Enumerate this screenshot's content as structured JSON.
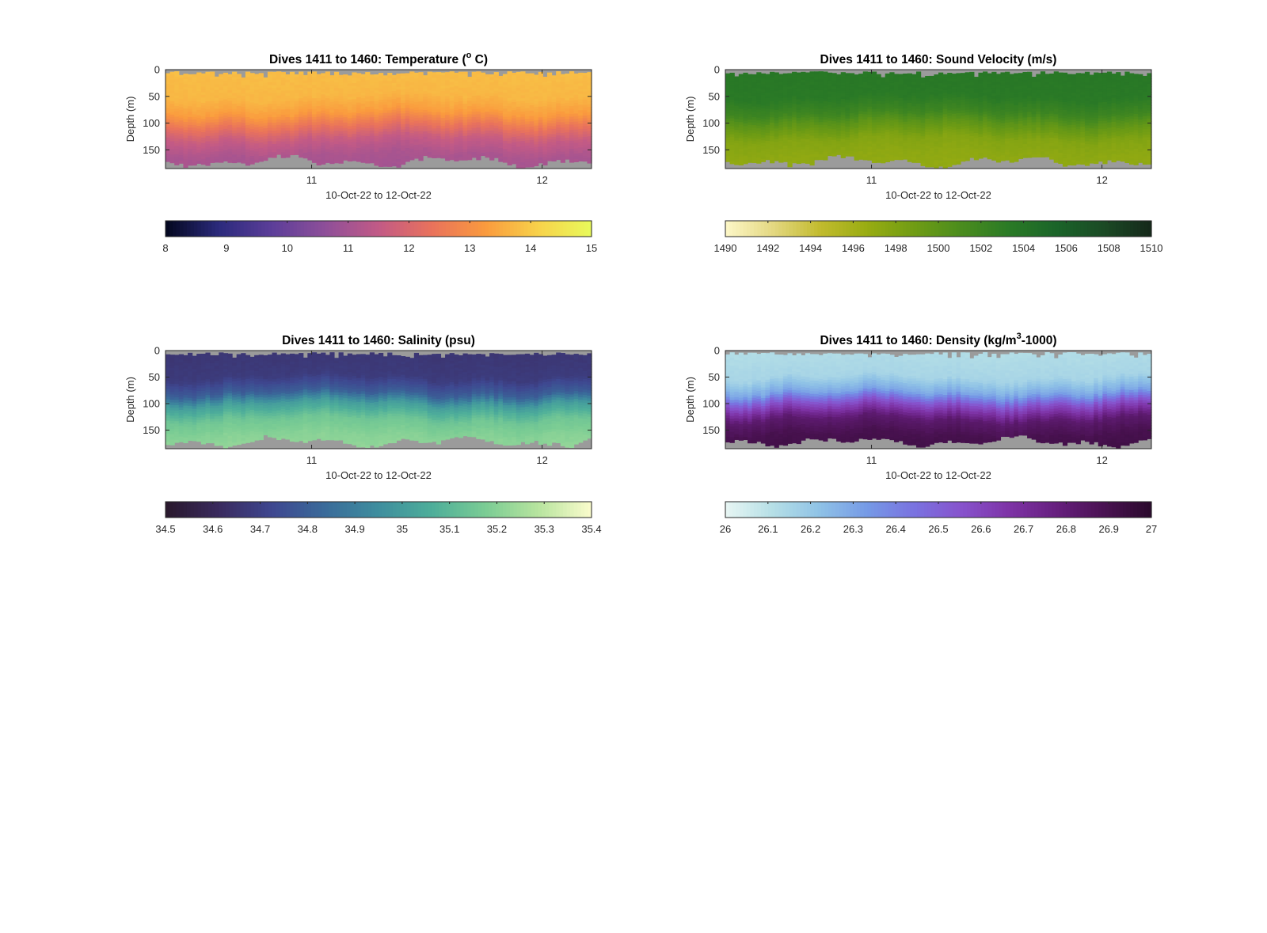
{
  "figure": {
    "panels": [
      {
        "id": "temperature",
        "title": "Dives 1411 to 1460: Temperature (",
        "title_sup": "o",
        "title_end": " C)",
        "colormap": [
          "#03071e",
          "#2b2a7c",
          "#5c3e99",
          "#8e4f99",
          "#c25a86",
          "#e9725c",
          "#fa9a3e",
          "#f7d24a",
          "#e8fa5b"
        ],
        "colorbar_ticks": [
          "8",
          "9",
          "10",
          "11",
          "12",
          "13",
          "14",
          "15"
        ]
      },
      {
        "id": "sound-velocity",
        "title": "Dives 1411 to 1460: Sound Velocity (m/s)",
        "title_sup": "",
        "title_end": "",
        "colormap": [
          "#fdf7c8",
          "#e4d882",
          "#c2bb2e",
          "#98ac12",
          "#6f9c14",
          "#4a8c1e",
          "#2a7a26",
          "#1b6429",
          "#1b4a25",
          "#15281a"
        ],
        "colorbar_ticks": [
          "1490",
          "1492",
          "1494",
          "1496",
          "1498",
          "1500",
          "1502",
          "1504",
          "1506",
          "1508",
          "1510"
        ]
      },
      {
        "id": "salinity",
        "title": "Dives 1411 to 1460: Salinity (psu)",
        "title_sup": "",
        "title_end": "",
        "colormap": [
          "#29182c",
          "#3a2a5e",
          "#3e4790",
          "#3a6b9a",
          "#3e8e9e",
          "#4eae9a",
          "#7acc94",
          "#b7e49e",
          "#fbfccd"
        ],
        "colorbar_ticks": [
          "34.5",
          "34.6",
          "34.7",
          "34.8",
          "34.9",
          "35",
          "35.1",
          "35.2",
          "35.3",
          "35.4"
        ]
      },
      {
        "id": "density",
        "title": "Dives 1411 to 1460: Density (kg/m",
        "title_sup": "3",
        "title_end": "-1000)",
        "colormap": [
          "#e8f6f4",
          "#b5dfe6",
          "#8fc2e6",
          "#7599e6",
          "#7a72e0",
          "#8752cc",
          "#7e33a6",
          "#661f7e",
          "#4a1252",
          "#2b0a2d"
        ],
        "colorbar_ticks": [
          "26",
          "26.1",
          "26.2",
          "26.3",
          "26.4",
          "26.5",
          "26.6",
          "26.7",
          "26.8",
          "26.9",
          "27"
        ]
      }
    ],
    "ylabel": "Depth (m)",
    "xlabel": "10-Oct-22 to 12-Oct-22",
    "yticks": [
      "0",
      "50",
      "100",
      "150"
    ],
    "xticks": [
      "11",
      "12"
    ],
    "nodata_color": "#9b9b9b"
  },
  "chart_data": [
    {
      "type": "heatmap",
      "title": "Dives 1411 to 1460: Temperature (° C)",
      "xlabel": "10-Oct-22 to 12-Oct-22",
      "ylabel": "Depth (m)",
      "x_tick_labels": [
        "11",
        "12"
      ],
      "y_tick_labels": [
        "0",
        "50",
        "100",
        "150"
      ],
      "ylim": [
        0,
        185
      ],
      "y_reversed": true,
      "colorbar_range": [
        8,
        15
      ],
      "dives": [
        1411,
        1460
      ],
      "profile": {
        "depth": [
          0,
          50,
          80,
          100,
          130,
          160,
          185
        ],
        "value": [
          13.8,
          13.7,
          13.3,
          12.6,
          11.6,
          11.1,
          11.0
        ]
      }
    },
    {
      "type": "heatmap",
      "title": "Dives 1411 to 1460: Sound Velocity (m/s)",
      "xlabel": "10-Oct-22 to 12-Oct-22",
      "ylabel": "Depth (m)",
      "x_tick_labels": [
        "11",
        "12"
      ],
      "y_tick_labels": [
        "0",
        "50",
        "100",
        "150"
      ],
      "ylim": [
        0,
        185
      ],
      "y_reversed": true,
      "colorbar_range": [
        1490,
        1510
      ],
      "dives": [
        1411,
        1460
      ],
      "profile": {
        "depth": [
          0,
          50,
          80,
          100,
          130,
          160,
          185
        ],
        "value": [
          1503.6,
          1503.4,
          1502.0,
          1500.0,
          1497.8,
          1497.2,
          1497.0
        ]
      }
    },
    {
      "type": "heatmap",
      "title": "Dives 1411 to 1460: Salinity (psu)",
      "xlabel": "10-Oct-22 to 12-Oct-22",
      "ylabel": "Depth (m)",
      "x_tick_labels": [
        "11",
        "12"
      ],
      "y_tick_labels": [
        "0",
        "50",
        "100",
        "150"
      ],
      "ylim": [
        0,
        185
      ],
      "y_reversed": true,
      "colorbar_range": [
        34.5,
        35.4
      ],
      "dives": [
        1411,
        1460
      ],
      "profile": {
        "depth": [
          0,
          50,
          80,
          100,
          130,
          160,
          185
        ],
        "value": [
          34.66,
          34.68,
          34.8,
          35.0,
          35.15,
          35.2,
          35.22
        ]
      }
    },
    {
      "type": "heatmap",
      "title": "Dives 1411 to 1460: Density (kg/m³-1000)",
      "xlabel": "10-Oct-22 to 12-Oct-22",
      "ylabel": "Depth (m)",
      "x_tick_labels": [
        "11",
        "12"
      ],
      "y_tick_labels": [
        "0",
        "50",
        "100",
        "150"
      ],
      "ylim": [
        0,
        185
      ],
      "y_reversed": true,
      "colorbar_range": [
        26,
        27
      ],
      "dives": [
        1411,
        1460
      ],
      "profile": {
        "depth": [
          0,
          50,
          80,
          100,
          130,
          160,
          185
        ],
        "value": [
          26.12,
          26.15,
          26.3,
          26.55,
          26.82,
          26.9,
          26.92
        ]
      }
    }
  ]
}
